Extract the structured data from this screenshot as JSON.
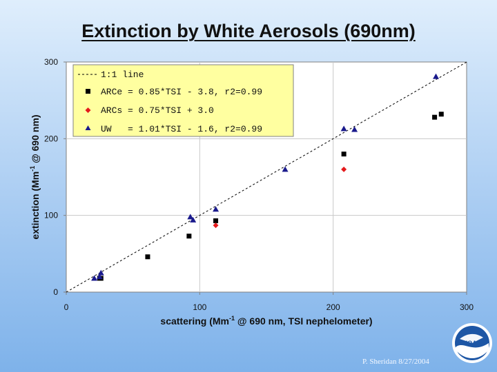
{
  "slide": {
    "title": "Extinction by White Aerosols (690nm)",
    "credit": "P. Sheridan  8/27/2004",
    "logo_text": "NOAA"
  },
  "chart_data": {
    "type": "scatter",
    "title": "Extinction by White Aerosols (690nm)",
    "xlabel_parts": [
      "scattering (Mm",
      "-1",
      " @ 690 nm, TSI nephelometer)"
    ],
    "ylabel_parts": [
      "extinction (Mm",
      "-1",
      " @ 690 nm)"
    ],
    "xlim": [
      0,
      300
    ],
    "ylim": [
      0,
      300
    ],
    "xticks": [
      0,
      100,
      200,
      300
    ],
    "yticks": [
      0,
      100,
      200,
      300
    ],
    "grid": true,
    "legend_position": "top-left",
    "reference_line": {
      "name": "1:1 line",
      "x": [
        0,
        300
      ],
      "y": [
        0,
        300
      ],
      "style": "dashed",
      "color": "#000000"
    },
    "series": [
      {
        "name": "ARCe = 0.85*TSI - 3.8, r2=0.99",
        "marker": "square",
        "color": "#000000",
        "points": [
          [
            25,
            18
          ],
          [
            26,
            18
          ],
          [
            61,
            46
          ],
          [
            92,
            73
          ],
          [
            112,
            93
          ],
          [
            208,
            180
          ],
          [
            276,
            228
          ],
          [
            281,
            232
          ]
        ]
      },
      {
        "name": "ARCs = 0.75*TSI + 3.0",
        "marker": "diamond",
        "color": "#e41a1c",
        "points": [
          [
            112,
            87
          ],
          [
            208,
            160
          ]
        ]
      },
      {
        "name": "UW   = 1.01*TSI - 1.6, r2=0.99",
        "marker": "triangle",
        "color": "#1a1a8c",
        "points": [
          [
            21,
            18
          ],
          [
            25,
            20
          ],
          [
            26,
            25
          ],
          [
            93,
            98
          ],
          [
            95,
            94
          ],
          [
            112,
            108
          ],
          [
            164,
            160
          ],
          [
            208,
            213
          ],
          [
            216,
            212
          ],
          [
            277,
            281
          ]
        ]
      }
    ]
  }
}
